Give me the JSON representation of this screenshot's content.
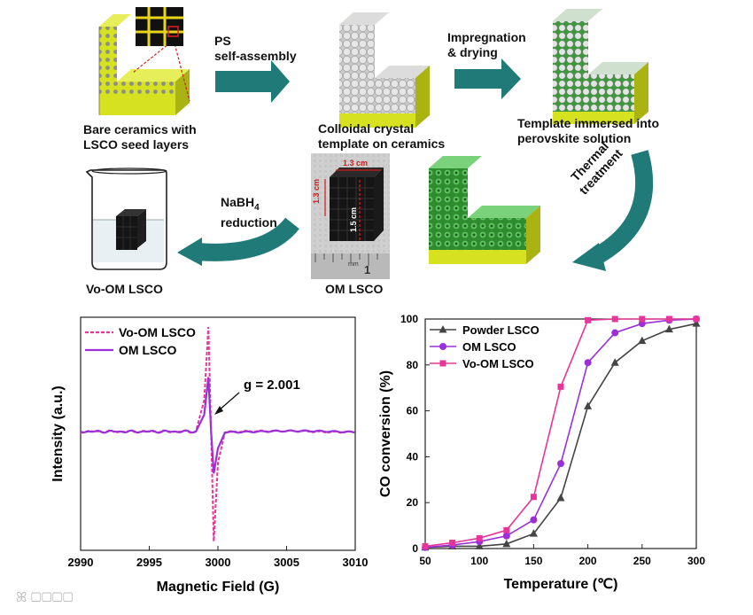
{
  "scheme": {
    "step1": "Bare ceramics with\nLSCO seed layers",
    "arrow1_label": "PS\nself-assembly",
    "step2": "Colloidal crystal\ntemplate on ceramics",
    "arrow2_label": "Impregnation\n& drying",
    "step3": "Template immersed into\nperovskite solution",
    "arrow3_label": "Thermal\ntreatment",
    "arrow4_label_main": "NaBH",
    "arrow4_label_sub": "4",
    "arrow4_label_line2": "reduction",
    "step4": "OM LSCO",
    "step5": "Vo-OM LSCO",
    "photo_dim_top": "1.3 cm",
    "photo_dim_side": "1.3 cm",
    "photo_dim_height": "1.5 cm"
  },
  "colors": {
    "arrow": "#1f7a78",
    "ceramic": "#d6e21f",
    "ceramic_dark": "#a9b312",
    "om_lsco": "#9b30d9",
    "vo_om_lsco": "#e8359a",
    "powder_lsco": "#444444"
  },
  "chart_data": [
    {
      "type": "line",
      "title": "",
      "xlabel": "Magnetic Field (G)",
      "ylabel": "Intensity (a.u.)",
      "xlim": [
        2990,
        3010
      ],
      "xticks": [
        2990,
        2995,
        3000,
        3005,
        3010
      ],
      "yticks_shown": false,
      "annotation": "g = 2.001",
      "legend_position": "top-left",
      "series": [
        {
          "name": "Vo-OM LSCO",
          "style": "dashed",
          "x": [
            2990,
            2998.5,
            2999.0,
            2999.3,
            2999.5,
            2999.7,
            3000.0,
            3000.5,
            3010
          ],
          "values": [
            0,
            0.04,
            0.3,
            1.0,
            0.0,
            -1.05,
            -0.3,
            -0.04,
            0
          ]
        },
        {
          "name": "OM LSCO",
          "style": "solid",
          "x": [
            2990,
            2998.5,
            2999.0,
            2999.3,
            2999.5,
            2999.7,
            3000.0,
            3000.5,
            3010
          ],
          "values": [
            0,
            0.03,
            0.16,
            0.52,
            0.0,
            -0.4,
            -0.16,
            -0.03,
            0
          ]
        }
      ]
    },
    {
      "type": "line",
      "title": "",
      "xlabel": "Temperature (℃)",
      "ylabel": "CO conversion (%)",
      "xlim": [
        50,
        300
      ],
      "ylim": [
        0,
        100
      ],
      "xticks": [
        50,
        100,
        150,
        200,
        250,
        300
      ],
      "yticks": [
        0,
        20,
        40,
        60,
        80,
        100
      ],
      "legend_position": "top-left",
      "series": [
        {
          "name": "Powder LSCO",
          "marker": "triangle",
          "x": [
            50,
            75,
            100,
            125,
            150,
            175,
            200,
            225,
            250,
            275,
            300
          ],
          "values": [
            0.5,
            1,
            1,
            2,
            6.5,
            22,
            62,
            81,
            90.5,
            95.5,
            98
          ]
        },
        {
          "name": "OM LSCO",
          "marker": "circle",
          "x": [
            50,
            75,
            100,
            125,
            150,
            175,
            200,
            225,
            250,
            275,
            300
          ],
          "values": [
            0.5,
            1.5,
            3,
            5.5,
            12.5,
            37,
            81,
            94,
            98,
            99.5,
            100
          ]
        },
        {
          "name": "Vo-OM LSCO",
          "marker": "square",
          "x": [
            50,
            75,
            100,
            125,
            150,
            175,
            200,
            225,
            250,
            275,
            300
          ],
          "values": [
            1,
            2.5,
            4.5,
            8,
            22.5,
            70.5,
            99.5,
            100,
            100,
            100,
            100
          ]
        }
      ]
    }
  ]
}
